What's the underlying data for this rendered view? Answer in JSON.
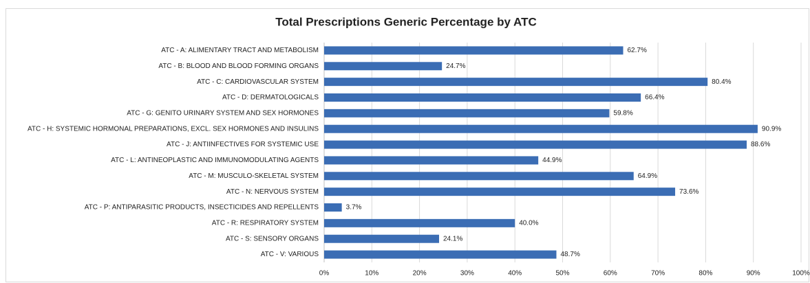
{
  "chart_data": {
    "type": "bar",
    "orientation": "horizontal",
    "title": "Total Prescriptions Generic Percentage by ATC",
    "categories": [
      "ATC - A: ALIMENTARY TRACT AND METABOLISM",
      "ATC - B: BLOOD AND BLOOD FORMING ORGANS",
      "ATC - C: CARDIOVASCULAR SYSTEM",
      "ATC - D: DERMATOLOGICALS",
      "ATC - G: GENITO URINARY SYSTEM AND SEX HORMONES",
      "ATC - H: SYSTEMIC HORMONAL PREPARATIONS, EXCL. SEX HORMONES AND INSULINS",
      "ATC - J: ANTIINFECTIVES FOR SYSTEMIC USE",
      "ATC - L: ANTINEOPLASTIC AND IMMUNOMODULATING AGENTS",
      "ATC - M: MUSCULO-SKELETAL SYSTEM",
      "ATC - N: NERVOUS SYSTEM",
      "ATC - P: ANTIPARASITIC PRODUCTS, INSECTICIDES AND REPELLENTS",
      "ATC - R: RESPIRATORY SYSTEM",
      "ATC - S: SENSORY ORGANS",
      "ATC - V: VARIOUS"
    ],
    "values": [
      62.7,
      24.7,
      80.4,
      66.4,
      59.8,
      90.9,
      88.6,
      44.9,
      64.9,
      73.6,
      3.7,
      40.0,
      24.1,
      48.7
    ],
    "value_labels": [
      "62.7%",
      "24.7%",
      "80.4%",
      "66.4%",
      "59.8%",
      "90.9%",
      "88.6%",
      "44.9%",
      "64.9%",
      "73.6%",
      "3.7%",
      "40.0%",
      "24.1%",
      "48.7%"
    ],
    "color": "#3b6db4",
    "xlim": [
      0,
      100
    ],
    "xticks": [
      {
        "value": 0,
        "label": "0%"
      },
      {
        "value": 10,
        "label": "10%"
      },
      {
        "value": 20,
        "label": "20%"
      },
      {
        "value": 30,
        "label": "30%"
      },
      {
        "value": 40,
        "label": "40%"
      },
      {
        "value": 50,
        "label": "50%"
      },
      {
        "value": 60,
        "label": "60%"
      },
      {
        "value": 70,
        "label": "70%"
      },
      {
        "value": 80,
        "label": "80%"
      },
      {
        "value": 90,
        "label": "90%"
      },
      {
        "value": 100,
        "label": "100%"
      }
    ],
    "grid": true
  }
}
